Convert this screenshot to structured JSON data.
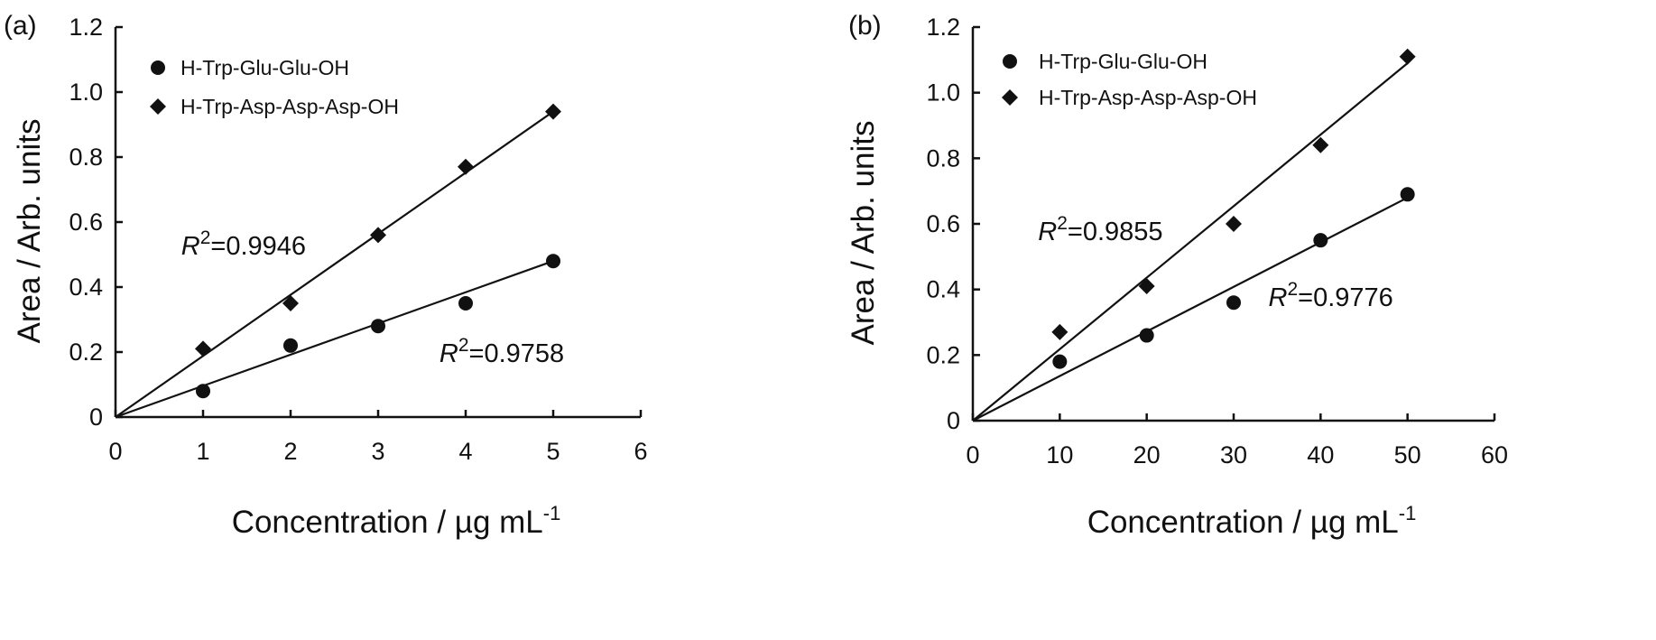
{
  "chart_data": [
    {
      "type": "scatter",
      "panel_label": "(a)",
      "xlabel": "Concentration / µg mL",
      "xlabel_sup": "-1",
      "ylabel": "Area / Arb. units",
      "xlim": [
        0,
        6
      ],
      "ylim": [
        0,
        1.2
      ],
      "xticks": [
        "0",
        "1",
        "2",
        "3",
        "4",
        "5",
        "6"
      ],
      "yticks": [
        "0",
        "0.2",
        "0.4",
        "0.6",
        "0.8",
        "1.0",
        "1.2"
      ],
      "legend_position": "top-left",
      "grid": false,
      "series": [
        {
          "name": "H-Trp-Glu-Glu-OH",
          "marker": "circle",
          "x": [
            1,
            2,
            3,
            4,
            5
          ],
          "y": [
            0.08,
            0.22,
            0.28,
            0.35,
            0.48
          ],
          "fit_line": {
            "x": [
              0,
              5
            ],
            "y": [
              0,
              0.48
            ]
          }
        },
        {
          "name": "H-Trp-Asp-Asp-Asp-OH",
          "marker": "diamond",
          "x": [
            1,
            2,
            3,
            4,
            5
          ],
          "y": [
            0.21,
            0.35,
            0.56,
            0.77,
            0.94
          ],
          "fit_line": {
            "x": [
              0,
              5
            ],
            "y": [
              0,
              0.94
            ]
          }
        }
      ],
      "annotations": [
        {
          "prefix": "R",
          "sup": "2",
          "text": "=0.9946",
          "x": 0.75,
          "y": 0.5
        },
        {
          "prefix": "R",
          "sup": "2",
          "text": "=0.9758",
          "x": 3.7,
          "y": 0.17
        }
      ]
    },
    {
      "type": "scatter",
      "panel_label": "(b)",
      "xlabel": "Concentration / µg mL",
      "xlabel_sup": "-1",
      "ylabel": "Area / Arb. units",
      "xlim": [
        0,
        60
      ],
      "ylim": [
        0,
        1.2
      ],
      "xticks": [
        "0",
        "10",
        "20",
        "30",
        "40",
        "50",
        "60"
      ],
      "yticks": [
        "0",
        "0.2",
        "0.4",
        "0.6",
        "0.8",
        "1.0",
        "1.2"
      ],
      "legend_position": "top-left",
      "grid": false,
      "series": [
        {
          "name": "H-Trp-Glu-Glu-OH",
          "marker": "circle",
          "x": [
            10,
            20,
            30,
            40,
            50
          ],
          "y": [
            0.18,
            0.26,
            0.36,
            0.55,
            0.69
          ],
          "fit_line": {
            "x": [
              0,
              50
            ],
            "y": [
              0,
              0.68
            ]
          }
        },
        {
          "name": "H-Trp-Asp-Asp-Asp-OH",
          "marker": "diamond",
          "x": [
            10,
            20,
            30,
            40,
            50
          ],
          "y": [
            0.27,
            0.41,
            0.6,
            0.84,
            1.11
          ],
          "fit_line": {
            "x": [
              0,
              50
            ],
            "y": [
              0,
              1.09
            ]
          }
        }
      ],
      "annotations": [
        {
          "prefix": "R",
          "sup": "2",
          "text": "=0.9855",
          "x": 7.5,
          "y": 0.55
        },
        {
          "prefix": "R",
          "sup": "2",
          "text": "=0.9776",
          "x": 34,
          "y": 0.35
        }
      ]
    }
  ]
}
